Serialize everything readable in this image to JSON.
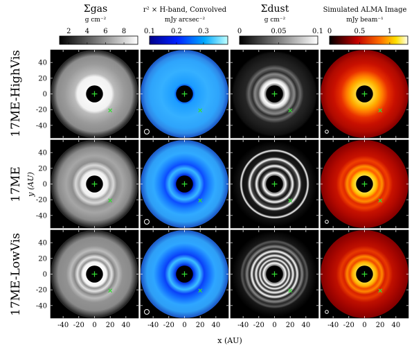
{
  "columns": [
    {
      "title": "Σgas",
      "unit": "g cm⁻²",
      "cbar": {
        "ticks": [
          "2",
          "4",
          "6",
          "8"
        ],
        "tick_values": [
          2,
          4,
          6,
          8
        ],
        "range": [
          1,
          9.5
        ],
        "colormap": "gray"
      }
    },
    {
      "title": "r² × H-band, Convolved",
      "unit": "mJy arcsec⁻²",
      "cbar": {
        "ticks": [
          "0.1",
          "0.2",
          "0.3"
        ],
        "tick_values": [
          0.1,
          0.2,
          0.3
        ],
        "range": [
          0.1,
          0.39
        ],
        "colormap": "jet-blue"
      }
    },
    {
      "title": "Σdust",
      "unit": "g cm⁻²",
      "cbar": {
        "ticks": [
          "0",
          "0.05",
          "0.1"
        ],
        "tick_values": [
          0,
          0.05,
          0.1
        ],
        "range": [
          0,
          0.1
        ],
        "colormap": "gray"
      }
    },
    {
      "title": "Simulated ALMA Image",
      "unit": "mJy beam⁻¹",
      "cbar": {
        "ticks": [
          "0",
          "0.5",
          "1"
        ],
        "tick_values": [
          0,
          0.5,
          1
        ],
        "range": [
          0,
          1.3
        ],
        "colormap": "hot"
      }
    }
  ],
  "rows": [
    {
      "label": "17ME-HighVis"
    },
    {
      "label": "17ME"
    },
    {
      "label": "17ME-LowVis"
    }
  ],
  "axes": {
    "xlabel": "x (AU)",
    "ylabel": "y (AU)",
    "xticks": [
      "-40",
      "-20",
      "0",
      "20",
      "40"
    ],
    "xtick_values": [
      -40,
      -20,
      0,
      20,
      40
    ],
    "yticks": [
      "40",
      "20",
      "0",
      "-20",
      "-40"
    ],
    "ytick_values": [
      40,
      20,
      0,
      -20,
      -40
    ],
    "range": [
      -56,
      56
    ]
  },
  "chart_data": {
    "type": "heatmap",
    "panels_grid": "3 rows x 4 columns of face-on disk images",
    "markers": {
      "star": {
        "x": 0,
        "y": 0,
        "symbol": "+",
        "color": "#33dd33"
      },
      "planet": {
        "x": 20,
        "y": -21,
        "symbol": "x",
        "color": "#33dd33"
      }
    },
    "central_mask_radius_au": 6,
    "outer_disk_radius_au": 50,
    "colors": {
      "marker": "#33dd33",
      "beam": "#ffffff",
      "mask": "#000000"
    }
  }
}
